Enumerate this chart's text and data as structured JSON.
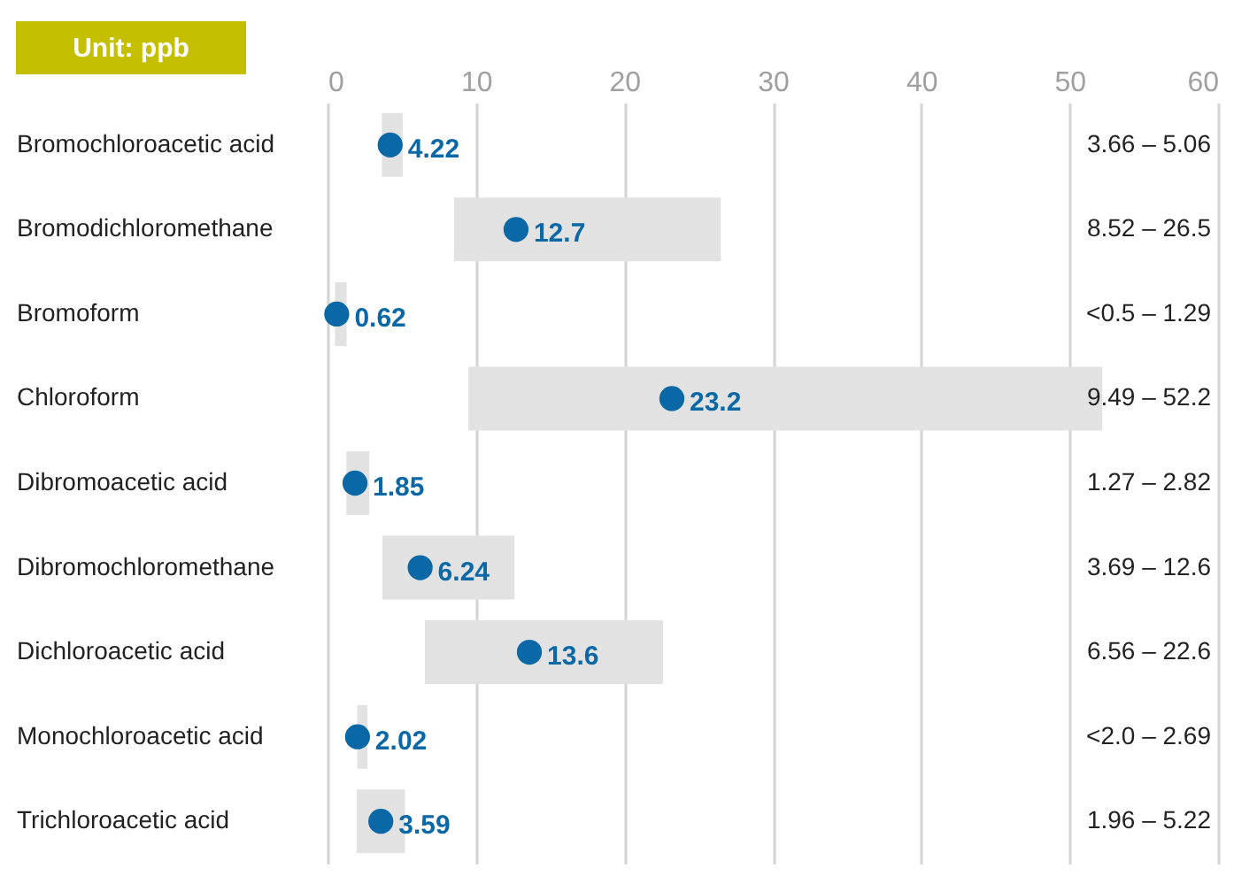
{
  "chart_data": {
    "type": "bar",
    "orientation": "horizontal",
    "title": "Unit: ppb",
    "categories": [
      "Bromochloroacetic acid",
      "Bromodichloromethane",
      "Bromoform",
      "Chloroform",
      "Dibromoacetic acid",
      "Dibromochloromethane",
      "Dichloroacetic acid",
      "Monochloroacetic acid",
      "Trichloroacetic acid"
    ],
    "series": [
      {
        "color": "#e2e2e2",
        "base": [
          3.66,
          8.52,
          0.5,
          9.49,
          1.27,
          3.69,
          6.56,
          2.0,
          1.96
        ],
        "values": [
          1.4,
          17.98,
          0.79,
          42.71,
          1.55,
          8.91,
          16.04,
          0.69,
          3.26
        ]
      },
      {
        "type": "scatter",
        "color": "#0b68a6",
        "marker": "circle",
        "values": [
          4.22,
          12.7,
          0.62,
          23.2,
          1.85,
          6.24,
          13.6,
          2.02,
          3.59
        ],
        "value_labels": [
          "4.22",
          "12.7",
          "0.62",
          "23.2",
          "1.85",
          "6.24",
          "13.6",
          "2.02",
          "3.59"
        ]
      }
    ],
    "annotations": [
      "3.66 – 5.06",
      "8.52 – 26.5",
      "<0.5 – 1.29",
      "9.49 – 52.2",
      "1.27 – 2.82",
      "3.69 – 12.6",
      "6.56 – 22.6",
      "<2.0 – 2.69",
      "1.96 – 5.22"
    ],
    "xlim": [
      0,
      60
    ],
    "xticks": [
      0,
      10,
      20,
      30,
      40,
      50,
      60
    ],
    "grid": "x"
  }
}
